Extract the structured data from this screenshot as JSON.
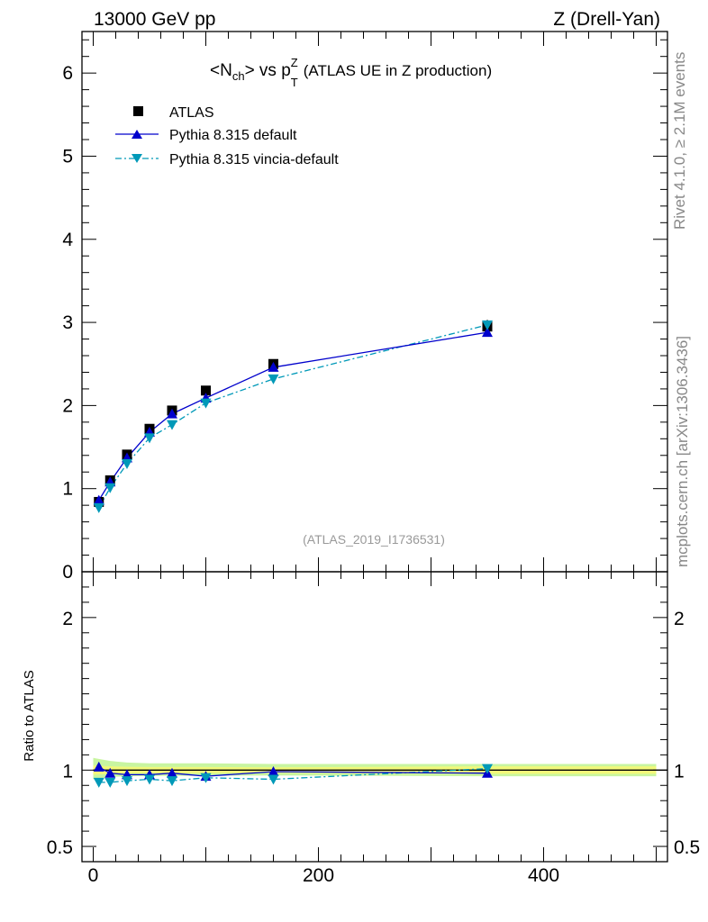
{
  "header": {
    "left": "13000 GeV pp",
    "right": "Z (Drell-Yan)"
  },
  "side": {
    "rivet": "Rivet 4.1.0, ≥ 2.1M events",
    "mcplots": "mcplots.cern.ch [arXiv:1306.3436]"
  },
  "chart_data": [
    {
      "type": "scatter",
      "panel": "main",
      "title": "<N_ch> vs p_T^Z (ATLAS UE in Z production)",
      "title_parts": {
        "lt": "<N",
        "ch": "ch",
        "gt_vs": "> vs p",
        "z": "Z",
        "t": "T",
        "rest": "(ATLAS UE in Z production)"
      },
      "analysis_label": "(ATLAS_2019_I1736531)",
      "xlabel": "",
      "ylabel": "",
      "xlim": [
        -10,
        510
      ],
      "ylim": [
        0,
        6.5
      ],
      "y_ticks": [
        0,
        1,
        2,
        3,
        4,
        5,
        6
      ],
      "y_tick_labels": [
        "0",
        "1",
        "2",
        "3",
        "4",
        "5",
        "6"
      ],
      "legend_position": "top-left",
      "series": [
        {
          "name": "ATLAS",
          "style": "data",
          "color": "#000000",
          "x": [
            5,
            15,
            30,
            50,
            70,
            100,
            160,
            350
          ],
          "y": [
            0.84,
            1.1,
            1.41,
            1.72,
            1.94,
            2.18,
            2.5,
            2.95
          ],
          "yerr": [
            0.02,
            0.02,
            0.03,
            0.03,
            0.04,
            0.04,
            0.05,
            0.08
          ]
        },
        {
          "name": "Pythia 8.315 default",
          "style": "solid",
          "color": "#0000cc",
          "x": [
            5,
            15,
            30,
            50,
            70,
            100,
            160,
            350
          ],
          "y": [
            0.86,
            1.08,
            1.37,
            1.68,
            1.9,
            2.09,
            2.46,
            2.88
          ]
        },
        {
          "name": "Pythia 8.315 vincia-default",
          "style": "dashdot",
          "color": "#0099b8",
          "x": [
            5,
            15,
            30,
            50,
            70,
            100,
            160,
            350
          ],
          "y": [
            0.77,
            1.01,
            1.3,
            1.61,
            1.77,
            2.03,
            2.32,
            2.97
          ]
        }
      ]
    },
    {
      "type": "scatter",
      "panel": "ratio",
      "ylabel": "Ratio to ATLAS",
      "xlim": [
        -10,
        510
      ],
      "ylim": [
        0.4,
        2.3
      ],
      "x_ticks": [
        0,
        200,
        400
      ],
      "x_tick_labels": [
        "0",
        "200",
        "400"
      ],
      "y_ticks": [
        0.5,
        1,
        2
      ],
      "y_tick_labels": [
        "0.5",
        "1",
        "2"
      ],
      "band": {
        "x": [
          0,
          15,
          30,
          50,
          70,
          100,
          160,
          350,
          500
        ],
        "stat_lo": [
          0.97,
          0.975,
          0.978,
          0.98,
          0.98,
          0.98,
          0.982,
          0.975,
          0.975
        ],
        "stat_hi": [
          1.03,
          1.025,
          1.022,
          1.02,
          1.02,
          1.02,
          1.018,
          1.025,
          1.025
        ],
        "tot_lo": [
          0.94,
          0.955,
          0.96,
          0.962,
          0.963,
          0.963,
          0.965,
          0.96,
          0.96
        ],
        "tot_hi": [
          1.08,
          1.06,
          1.05,
          1.045,
          1.045,
          1.045,
          1.04,
          1.04,
          1.04
        ],
        "inner_color": "#f2f97a",
        "outer_color": "#c8f5a0"
      },
      "series": [
        {
          "name": "Pythia 8.315 default",
          "color": "#0000cc",
          "x": [
            5,
            15,
            30,
            50,
            70,
            100,
            160,
            350
          ],
          "y": [
            1.02,
            0.98,
            0.97,
            0.97,
            0.98,
            0.96,
            0.99,
            0.98
          ]
        },
        {
          "name": "Pythia 8.315 vincia-default",
          "color": "#0099b8",
          "x": [
            5,
            15,
            30,
            50,
            70,
            100,
            160,
            350
          ],
          "y": [
            0.92,
            0.92,
            0.93,
            0.94,
            0.93,
            0.95,
            0.94,
            1.01
          ]
        }
      ]
    }
  ]
}
